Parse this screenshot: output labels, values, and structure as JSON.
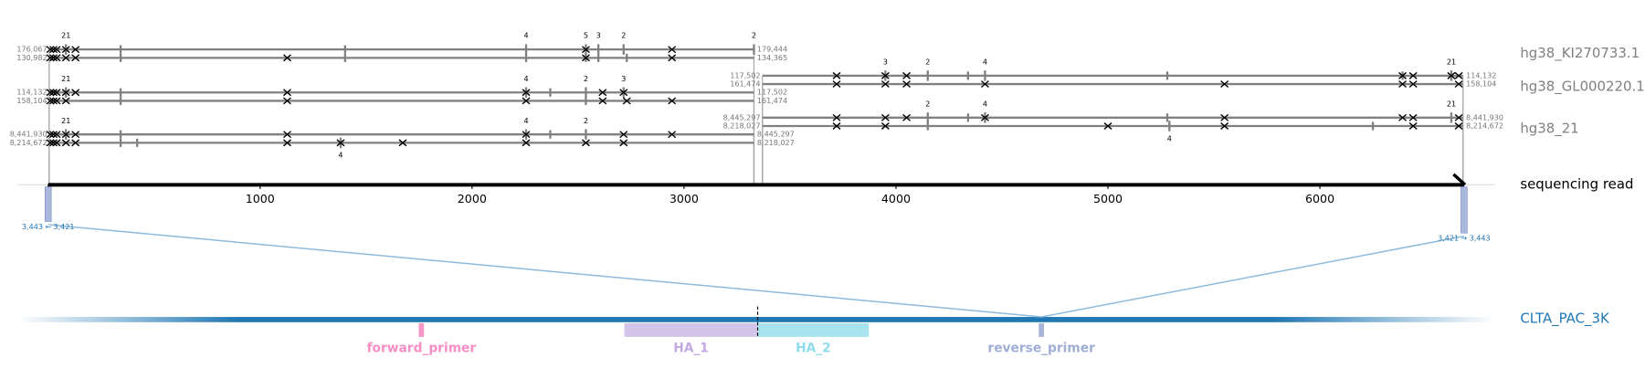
{
  "reference_labels": [
    "hg38_KI270733.1",
    "hg38_GL000220.1",
    "hg38_21"
  ],
  "read": {
    "label": "sequencing read",
    "length": 6680,
    "xlim": [
      -143,
      6826
    ],
    "xticks": [
      0,
      1000,
      2000,
      3000,
      4000,
      5000,
      6000
    ]
  },
  "alignments": [
    {
      "read_start": 5,
      "read_end": 3330,
      "ref_start": {
        "value": 176067,
        "label": "176,067"
      },
      "ref_end": {
        "value": 179444,
        "label": "179,444"
      },
      "mismatches": [
        10,
        25,
        40,
        84,
        129,
        2537,
        2943
      ],
      "indel_ticks": [
        342,
        1401
      ],
      "labeled_indels": [
        {
          "position": 84,
          "length": 21
        },
        {
          "position": 2255,
          "length": 4
        },
        {
          "position": 2537,
          "length": 5
        },
        {
          "position": 2596,
          "length": 3
        },
        {
          "position": 2715,
          "length": 2
        },
        {
          "position": 3330,
          "length": 2
        }
      ]
    },
    {
      "read_start": 5,
      "read_end": 3330,
      "ref_start": {
        "value": 130982,
        "label": "130,982"
      },
      "ref_end": {
        "value": 134365,
        "label": "134,365"
      },
      "mismatches": [
        10,
        25,
        40,
        84,
        129,
        1128,
        2537,
        2943
      ],
      "indel_ticks": [
        342,
        1401,
        2255,
        2537,
        2596,
        2730
      ],
      "labeled_indels": []
    },
    {
      "read_start": 5,
      "read_end": 3330,
      "ref_start": {
        "value": 114132,
        "label": "114,132"
      },
      "ref_end": {
        "value": 117502,
        "label": "117,502"
      },
      "mismatches": [
        10,
        25,
        40,
        84,
        129,
        1128,
        2255,
        2616,
        2715
      ],
      "indel_ticks": [
        342,
        2369
      ],
      "labeled_indels": [
        {
          "position": 84,
          "length": 21
        },
        {
          "position": 2255,
          "length": 4
        },
        {
          "position": 2537,
          "length": 2
        },
        {
          "position": 2715,
          "length": 3
        }
      ]
    },
    {
      "read_start": 5,
      "read_end": 3330,
      "ref_start": {
        "value": 158104,
        "label": "158,104"
      },
      "ref_end": {
        "value": 161474,
        "label": "161,474"
      },
      "mismatches": [
        10,
        25,
        40,
        84,
        1128,
        2255,
        2616,
        2730,
        2943
      ],
      "indel_ticks": [
        342,
        2537
      ],
      "labeled_indels": []
    },
    {
      "read_start": 5,
      "read_end": 3330,
      "ref_start": {
        "value": 8441930,
        "label": "8,441,930"
      },
      "ref_end": {
        "value": 8445297,
        "label": "8,445,297"
      },
      "mismatches": [
        10,
        25,
        40,
        84,
        129,
        1128,
        2255,
        2715,
        2943
      ],
      "indel_ticks": [
        342,
        2369
      ],
      "labeled_indels": [
        {
          "position": 84,
          "length": 21
        },
        {
          "position": 2255,
          "length": 4
        },
        {
          "position": 2537,
          "length": 2
        }
      ]
    },
    {
      "read_start": 5,
      "read_end": 3330,
      "ref_start": {
        "value": 8214672,
        "label": "8,214,672"
      },
      "ref_end": {
        "value": 8218027,
        "label": "8,218,027"
      },
      "mismatches": [
        10,
        25,
        40,
        84,
        129,
        1128,
        1380,
        1673,
        2255,
        2537,
        2715
      ],
      "indel_ticks": [
        342,
        420
      ],
      "labeled_indels": [
        {
          "position": 1380,
          "length": 4
        }
      ]
    },
    {
      "read_start": 3370,
      "read_end": 6675,
      "ref_start": {
        "value": 117502,
        "label": "117,502"
      },
      "ref_end": {
        "value": 114132,
        "label": "114,132"
      },
      "mismatches": [
        3720,
        3950,
        4050,
        6390,
        6440,
        6620,
        6655
      ],
      "indel_ticks": [
        4340,
        5280,
        6390
      ],
      "labeled_indels": [
        {
          "position": 3950,
          "length": 3
        },
        {
          "position": 4150,
          "length": 2
        },
        {
          "position": 4420,
          "length": 4
        },
        {
          "position": 6620,
          "length": 21
        }
      ]
    },
    {
      "read_start": 3370,
      "read_end": 6675,
      "ref_start": {
        "value": 161474,
        "label": "161,474"
      },
      "ref_end": {
        "value": 158104,
        "label": "158,104"
      },
      "mismatches": [
        3720,
        3950,
        4050,
        4420,
        5550,
        6390,
        6440,
        6655
      ],
      "indel_ticks": [],
      "labeled_indels": []
    },
    {
      "read_start": 3370,
      "read_end": 6675,
      "ref_start": {
        "value": 8445297,
        "label": "8,445,297"
      },
      "ref_end": {
        "value": 8441930,
        "label": "8,441,930"
      },
      "mismatches": [
        3720,
        3950,
        4050,
        4420,
        5550,
        6390,
        6440,
        6655
      ],
      "indel_ticks": [
        4340,
        5280
      ],
      "labeled_indels": [
        {
          "position": 4150,
          "length": 2
        },
        {
          "position": 4420,
          "length": 4
        },
        {
          "position": 6620,
          "length": 21
        }
      ]
    },
    {
      "read_start": 3370,
      "read_end": 6675,
      "ref_start": {
        "value": 8218027,
        "label": "8,218,027"
      },
      "ref_end": {
        "value": 8214672,
        "label": "8,214,672"
      },
      "mismatches": [
        3720,
        3950,
        5000,
        5550,
        6440,
        6655
      ],
      "indel_ticks": [
        4150,
        6250
      ],
      "labeled_indels": [
        {
          "position": 5290,
          "length": 4
        }
      ]
    }
  ],
  "amplicon": {
    "name": "CLTA_PAC_3K",
    "color": "#1f77b4",
    "xlim": [
      0,
      7000
    ],
    "cut_site": 3506,
    "features": [
      {
        "name": "forward_primer",
        "start": 1900,
        "end": 1925,
        "color": "#f598c8",
        "label_color": "#f58ec5"
      },
      {
        "name": "HA_1",
        "start": 2874,
        "end": 3506,
        "color": "#d4c4ea",
        "label_color": "#c2a9e2"
      },
      {
        "name": "HA_2",
        "start": 3506,
        "end": 4033,
        "color": "#a8e4ee",
        "label_color": "#8fdcec"
      },
      {
        "name": "reverse_primer",
        "start": 4838,
        "end": 4863,
        "color": "#a9b5d8",
        "label_color": "#a0aed6"
      }
    ],
    "read_maps": [
      {
        "read_position": 0,
        "amplicon_position": 4850,
        "labels": [
          {
            "value": 3443,
            "label": "3,443"
          },
          {
            "value": 3421,
            "label": "3,421"
          }
        ]
      },
      {
        "read_position": 6680,
        "amplicon_position": 4850,
        "labels": [
          {
            "value": 3421,
            "label": "3,421"
          },
          {
            "value": 3443,
            "label": "3,443"
          }
        ]
      }
    ]
  }
}
